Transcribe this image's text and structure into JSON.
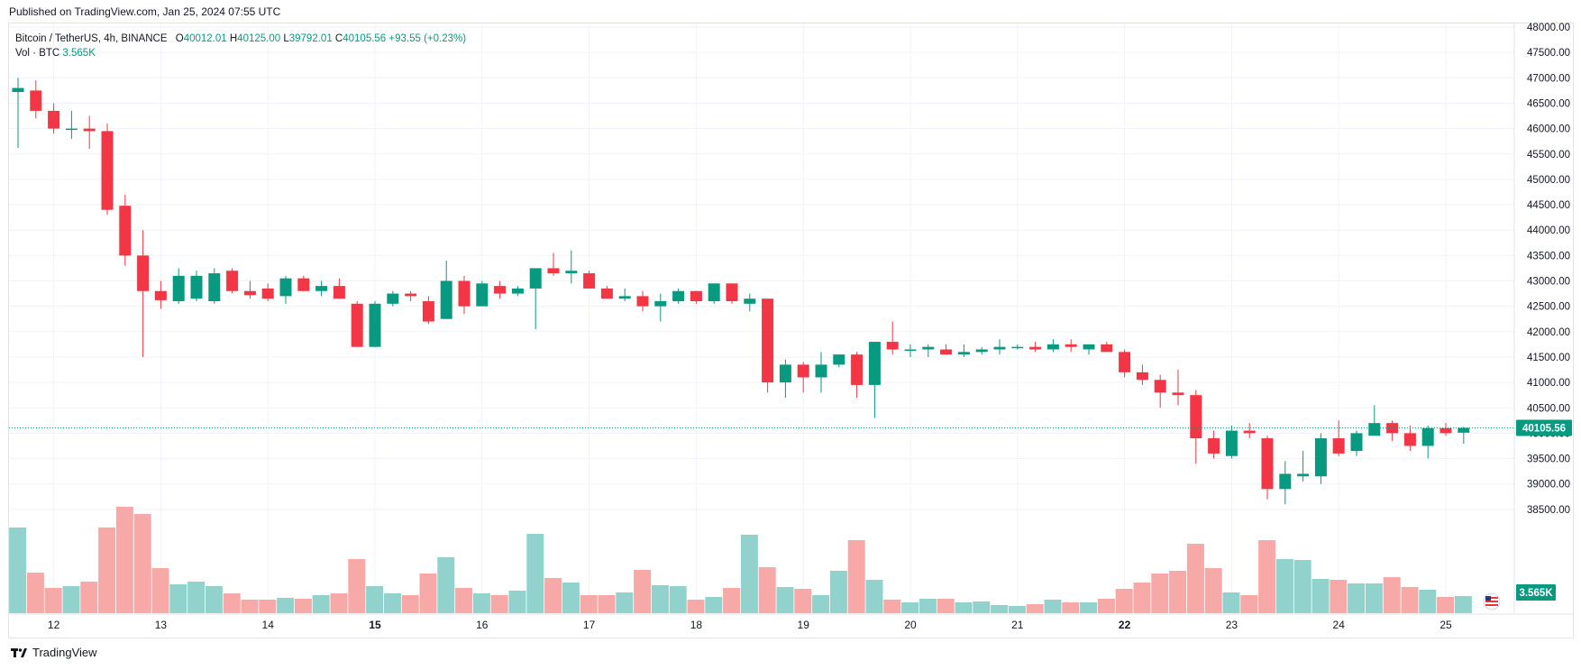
{
  "published": "Published on TradingView.com, Jan 25, 2024 07:55 UTC",
  "legend": {
    "symbol": "Bitcoin / TetherUS, 4h, BINANCE",
    "o_label": "O",
    "open": "40012.01",
    "h_label": "H",
    "high": "40125.00",
    "l_label": "L",
    "low": "39792.01",
    "c_label": "C",
    "close": "40105.56",
    "change": "+93.55 (+0.23%)",
    "vol_label": "Vol · BTC",
    "vol_value": "3.565K"
  },
  "footer": {
    "brand": "TradingView",
    "logo_icon": "tradingview-logo-icon"
  },
  "colors": {
    "up": "#089981",
    "down": "#f23645",
    "vol_up": "#92d2cc",
    "vol_down": "#f7a9a7",
    "grid": "#f0f3fa",
    "axis_text": "#131722"
  },
  "chart_data": {
    "type": "candlestick",
    "symbol": "Bitcoin / TetherUS",
    "interval": "4h",
    "exchange": "BINANCE",
    "ylim": [
      38000,
      48000
    ],
    "y_ticks": [
      "38500.00",
      "39000.00",
      "39500.00",
      "40000.00",
      "40500.00",
      "41000.00",
      "41500.00",
      "42000.00",
      "42500.00",
      "43000.00",
      "43500.00",
      "44000.00",
      "44500.00",
      "45000.00",
      "45500.00",
      "46000.00",
      "46500.00",
      "47000.00",
      "47500.00",
      "48000.00"
    ],
    "x_ticks": [
      {
        "label": "12",
        "index": 2
      },
      {
        "label": "13",
        "index": 8
      },
      {
        "label": "14",
        "index": 14
      },
      {
        "label": "15",
        "index": 20
      },
      {
        "label": "16",
        "index": 26
      },
      {
        "label": "17",
        "index": 32
      },
      {
        "label": "18",
        "index": 38
      },
      {
        "label": "19",
        "index": 44
      },
      {
        "label": "20",
        "index": 50
      },
      {
        "label": "21",
        "index": 56
      },
      {
        "label": "22",
        "index": 62
      },
      {
        "label": "23",
        "index": 68
      },
      {
        "label": "24",
        "index": 74
      },
      {
        "label": "25",
        "index": 80
      }
    ],
    "bold_ticks": [
      "15",
      "22"
    ],
    "last_price": "40105.56",
    "last_volume": "3.565K",
    "ohlc": [
      [
        46720,
        47000,
        45620,
        46800
      ],
      [
        46750,
        46950,
        46200,
        46350
      ],
      [
        46350,
        46500,
        45900,
        46000
      ],
      [
        46000,
        46350,
        45800,
        46000
      ],
      [
        46000,
        46250,
        45600,
        45950
      ],
      [
        45950,
        46100,
        44300,
        44400
      ],
      [
        44480,
        44700,
        43300,
        43500
      ],
      [
        43500,
        44000,
        41500,
        42800
      ],
      [
        42800,
        43000,
        42450,
        42620
      ],
      [
        42600,
        43250,
        42550,
        43100
      ],
      [
        42650,
        43200,
        42600,
        43100
      ],
      [
        42600,
        43250,
        42550,
        43150
      ],
      [
        43200,
        43250,
        42750,
        42800
      ],
      [
        42800,
        43000,
        42650,
        42720
      ],
      [
        42850,
        42950,
        42600,
        42650
      ],
      [
        42700,
        43100,
        42550,
        43050
      ],
      [
        43050,
        43100,
        42800,
        42800
      ],
      [
        42800,
        43000,
        42700,
        42900
      ],
      [
        42900,
        43050,
        42650,
        42650
      ],
      [
        42550,
        42600,
        41700,
        41700
      ],
      [
        41700,
        42600,
        41700,
        42550
      ],
      [
        42550,
        42800,
        42500,
        42750
      ],
      [
        42750,
        42800,
        42600,
        42700
      ],
      [
        42600,
        42700,
        42150,
        42200
      ],
      [
        42250,
        43400,
        42250,
        43000
      ],
      [
        43000,
        43100,
        42350,
        42500
      ],
      [
        42500,
        43000,
        42500,
        42950
      ],
      [
        42900,
        43000,
        42650,
        42750
      ],
      [
        42750,
        42900,
        42700,
        42850
      ],
      [
        42850,
        43250,
        42050,
        43250
      ],
      [
        43250,
        43550,
        43100,
        43150
      ],
      [
        43150,
        43600,
        42950,
        43200
      ],
      [
        43150,
        43200,
        42850,
        42850
      ],
      [
        42850,
        42900,
        42650,
        42650
      ],
      [
        42650,
        42850,
        42600,
        42700
      ],
      [
        42700,
        42800,
        42400,
        42500
      ],
      [
        42500,
        42750,
        42200,
        42600
      ],
      [
        42600,
        42850,
        42550,
        42800
      ],
      [
        42800,
        42800,
        42550,
        42600
      ],
      [
        42600,
        42950,
        42550,
        42950
      ],
      [
        42950,
        42950,
        42550,
        42600
      ],
      [
        42550,
        42750,
        42400,
        42650
      ],
      [
        42650,
        42650,
        40800,
        41000
      ],
      [
        41000,
        41450,
        40700,
        41350
      ],
      [
        41350,
        41400,
        40800,
        41100
      ],
      [
        41100,
        41600,
        40800,
        41350
      ],
      [
        41350,
        41550,
        41300,
        41550
      ],
      [
        41550,
        41600,
        40700,
        40950
      ],
      [
        40950,
        41800,
        40300,
        41800
      ],
      [
        41800,
        42200,
        41550,
        41650
      ],
      [
        41650,
        41750,
        41500,
        41650
      ],
      [
        41650,
        41750,
        41500,
        41700
      ],
      [
        41650,
        41750,
        41550,
        41550
      ],
      [
        41550,
        41750,
        41500,
        41600
      ],
      [
        41600,
        41700,
        41550,
        41650
      ],
      [
        41650,
        41850,
        41550,
        41700
      ],
      [
        41700,
        41750,
        41650,
        41700
      ],
      [
        41700,
        41800,
        41600,
        41650
      ],
      [
        41650,
        41850,
        41600,
        41750
      ],
      [
        41750,
        41850,
        41600,
        41700
      ],
      [
        41650,
        41750,
        41550,
        41750
      ],
      [
        41750,
        41800,
        41600,
        41600
      ],
      [
        41600,
        41650,
        41100,
        41200
      ],
      [
        41200,
        41350,
        40950,
        41050
      ],
      [
        41050,
        41150,
        40500,
        40800
      ],
      [
        40800,
        41250,
        40550,
        40750
      ],
      [
        40750,
        40850,
        39400,
        39900
      ],
      [
        39900,
        40050,
        39500,
        39600
      ],
      [
        39550,
        40150,
        39500,
        40050
      ],
      [
        40050,
        40200,
        39900,
        40000
      ],
      [
        39900,
        39950,
        38700,
        38900
      ],
      [
        38900,
        39450,
        38600,
        39200
      ],
      [
        39150,
        39650,
        39050,
        39200
      ],
      [
        39150,
        40000,
        39000,
        39900
      ],
      [
        39900,
        40250,
        39550,
        39600
      ],
      [
        39650,
        40050,
        39550,
        40000
      ],
      [
        39950,
        40550,
        39950,
        40200
      ],
      [
        40200,
        40250,
        39850,
        40000
      ],
      [
        40000,
        40150,
        39650,
        39750
      ],
      [
        39750,
        40150,
        39500,
        40100
      ],
      [
        40100,
        40200,
        39950,
        40000
      ],
      [
        40010,
        40125,
        39792,
        40105
      ]
    ],
    "volume": [
      95,
      45,
      28,
      30,
      35,
      95,
      118,
      110,
      50,
      32,
      35,
      30,
      22,
      15,
      15,
      17,
      16,
      20,
      22,
      60,
      30,
      22,
      20,
      44,
      62,
      28,
      22,
      20,
      25,
      88,
      39,
      34,
      20,
      20,
      23,
      48,
      31,
      30,
      15,
      18,
      28,
      87,
      51,
      29,
      27,
      20,
      47,
      81,
      37,
      15,
      12,
      16,
      16,
      12,
      13,
      9,
      8,
      10,
      15,
      12,
      12,
      16,
      27,
      34,
      44,
      47,
      77,
      50,
      23,
      20,
      81,
      60,
      59,
      38,
      37,
      33,
      33,
      40,
      29,
      26,
      18,
      19
    ]
  }
}
